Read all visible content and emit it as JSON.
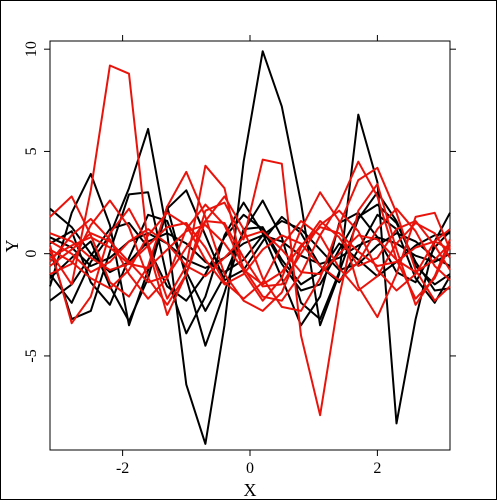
{
  "chart_data": {
    "type": "line",
    "xlabel": "X",
    "ylabel": "Y",
    "xlim": [
      -3.14,
      3.14
    ],
    "ylim": [
      -9.6,
      10.4
    ],
    "x_ticks": [
      -2,
      0,
      2
    ],
    "x_tick_labels": [
      "-2",
      "0",
      "2"
    ],
    "y_ticks": [
      -5,
      0,
      5,
      10
    ],
    "y_tick_labels": [
      "-5",
      "0",
      "5",
      "10"
    ],
    "grid": false,
    "legend": "none",
    "colors": {
      "black": "#000000",
      "red": "#e8140c"
    },
    "x": [
      -3.14,
      -2.8,
      -2.5,
      -2.2,
      -1.9,
      -1.6,
      -1.3,
      -1.0,
      -0.7,
      -0.4,
      -0.1,
      0.2,
      0.5,
      0.8,
      1.1,
      1.4,
      1.7,
      2.0,
      2.3,
      2.6,
      2.9,
      3.14
    ],
    "series": [
      {
        "color": "#000000",
        "values": [
          -1.6,
          2.0,
          3.9,
          1.4,
          -3.5,
          -0.8,
          2.3,
          -1.2,
          -4.5,
          -1.9,
          1.2,
          1.3,
          -0.3,
          -1.5,
          -0.9,
          0.5,
          -0.3,
          -1.1,
          -0.4,
          0.4,
          0.9,
          1.0
        ]
      },
      {
        "color": "#000000",
        "values": [
          -1.0,
          -2.4,
          -0.4,
          0.9,
          3.2,
          6.1,
          1.0,
          -6.4,
          -9.3,
          -3.5,
          4.5,
          9.9,
          7.2,
          2.5,
          -3.5,
          -1.0,
          6.8,
          3.5,
          -8.3,
          -3.2,
          0.6,
          2.0
        ]
      },
      {
        "color": "#000000",
        "values": [
          0.2,
          -3.2,
          -2.8,
          0.1,
          2.9,
          3.0,
          -1.2,
          -3.9,
          -2.1,
          0.9,
          2.5,
          1.0,
          -1.2,
          -3.5,
          -2.1,
          1.5,
          2.0,
          0.8,
          -0.9,
          -1.4,
          0.3,
          1.1
        ]
      },
      {
        "color": "#000000",
        "values": [
          0.5,
          1.1,
          -1.4,
          -2.5,
          -0.2,
          1.9,
          1.6,
          -0.9,
          -2.8,
          -1.1,
          1.1,
          2.6,
          0.8,
          -2.4,
          -3.2,
          -0.9,
          1.7,
          3.0,
          1.6,
          -0.6,
          -1.5,
          -1.0
        ]
      },
      {
        "color": "#000000",
        "values": [
          -1.2,
          -0.2,
          0.6,
          -1.6,
          -3.3,
          -1.2,
          2.2,
          3.1,
          0.9,
          -1.3,
          -0.8,
          0.6,
          1.8,
          1.0,
          -0.6,
          -1.4,
          0.2,
          1.9,
          1.2,
          -1.2,
          -2.4,
          -1.1
        ]
      },
      {
        "color": "#000000",
        "values": [
          2.2,
          1.3,
          0.0,
          -0.9,
          -0.4,
          0.6,
          1.0,
          0.5,
          -0.4,
          -0.9,
          -0.3,
          0.9,
          1.6,
          1.2,
          0.2,
          -0.8,
          -0.5,
          0.4,
          1.0,
          0.6,
          -0.2,
          -0.6
        ]
      },
      {
        "color": "#000000",
        "values": [
          -2.3,
          -1.5,
          -0.1,
          1.2,
          1.5,
          0.3,
          -1.6,
          -2.3,
          -1.0,
          0.8,
          1.9,
          1.2,
          -0.5,
          -1.8,
          -1.5,
          0.2,
          1.8,
          2.4,
          1.5,
          -0.4,
          -1.8,
          -1.7
        ]
      },
      {
        "color": "#000000",
        "values": [
          0.8,
          0.3,
          -0.6,
          -0.2,
          0.6,
          1.0,
          0.5,
          -0.3,
          -0.7,
          -0.2,
          0.5,
          0.9,
          0.6,
          -0.1,
          -0.5,
          -0.2,
          0.4,
          0.8,
          0.5,
          -0.1,
          -0.4,
          0.0
        ]
      },
      {
        "color": "#e8140c",
        "values": [
          0.1,
          -1.5,
          3.1,
          9.2,
          8.8,
          0.3,
          -3.0,
          -1.0,
          2.1,
          2.5,
          0.7,
          4.6,
          4.4,
          -4.0,
          -7.9,
          -2.1,
          2.1,
          3.4,
          0.2,
          -2.5,
          -1.1,
          0.7
        ]
      },
      {
        "color": "#e8140c",
        "values": [
          0.4,
          -3.4,
          -2.1,
          1.0,
          2.2,
          0.5,
          -2.2,
          -0.6,
          4.3,
          3.2,
          -0.9,
          -2.3,
          -1.2,
          1.2,
          3.0,
          1.6,
          -1.6,
          -3.1,
          -1.0,
          1.8,
          2.0,
          0.2
        ]
      },
      {
        "color": "#e8140c",
        "values": [
          1.8,
          2.8,
          0.9,
          -1.4,
          -2.1,
          -0.6,
          2.3,
          4.0,
          1.8,
          -1.0,
          -2.3,
          -2.8,
          -1.9,
          0.3,
          1.6,
          0.8,
          -0.6,
          -0.2,
          1.2,
          1.6,
          0.4,
          -0.8
        ]
      },
      {
        "color": "#e8140c",
        "values": [
          -1.0,
          -0.5,
          1.4,
          2.6,
          1.3,
          -1.2,
          -2.5,
          -1.0,
          1.6,
          2.8,
          1.2,
          -1.2,
          -2.6,
          -2.8,
          -1.2,
          1.4,
          3.6,
          4.2,
          2.0,
          -0.8,
          -2.3,
          -1.6
        ]
      },
      {
        "color": "#e8140c",
        "values": [
          -0.4,
          0.9,
          1.7,
          0.7,
          -1.0,
          -2.2,
          -1.2,
          1.2,
          2.4,
          1.4,
          -0.7,
          -2.1,
          -2.3,
          -1.0,
          0.9,
          2.4,
          4.5,
          2.8,
          -0.3,
          -2.2,
          -1.2,
          0.4
        ]
      },
      {
        "color": "#e8140c",
        "values": [
          0.6,
          0.0,
          -0.9,
          -0.4,
          0.6,
          1.2,
          0.5,
          -0.6,
          -1.1,
          -0.2,
          0.8,
          1.1,
          0.2,
          -0.9,
          -1.0,
          0.0,
          0.9,
          0.7,
          -0.3,
          -0.9,
          -0.3,
          0.5
        ]
      },
      {
        "color": "#e8140c",
        "values": [
          -0.6,
          0.2,
          1.0,
          0.6,
          -0.4,
          -1.4,
          -1.1,
          0.3,
          1.6,
          1.5,
          -0.2,
          -1.6,
          -1.5,
          0.0,
          1.4,
          2.1,
          1.1,
          -0.8,
          -1.8,
          -1.0,
          0.6,
          1.2
        ]
      },
      {
        "color": "#e8140c",
        "values": [
          1.0,
          0.6,
          -0.2,
          -0.8,
          -0.5,
          0.4,
          1.3,
          1.5,
          0.3,
          -1.4,
          -2.2,
          -1.4,
          0.4,
          1.6,
          0.9,
          -0.7,
          -1.8,
          -1.1,
          0.5,
          1.5,
          1.0,
          -0.2
        ]
      },
      {
        "color": "#e8140c",
        "values": [
          0.2,
          -0.4,
          -1.2,
          -1.7,
          -0.8,
          0.9,
          2.0,
          1.4,
          -0.3,
          -1.5,
          -1.0,
          0.2,
          0.9,
          0.5,
          -0.6,
          -1.3,
          -0.4,
          1.2,
          2.2,
          1.1,
          -0.6,
          -1.3
        ]
      },
      {
        "color": "#e8140c",
        "values": [
          -0.2,
          0.4,
          0.8,
          0.3,
          -0.5,
          -0.7,
          0.2,
          1.1,
          1.4,
          0.5,
          -0.8,
          -1.5,
          -0.9,
          0.4,
          1.3,
          1.0,
          0.1,
          -0.6,
          -0.4,
          0.3,
          0.6,
          0.2
        ]
      }
    ]
  }
}
